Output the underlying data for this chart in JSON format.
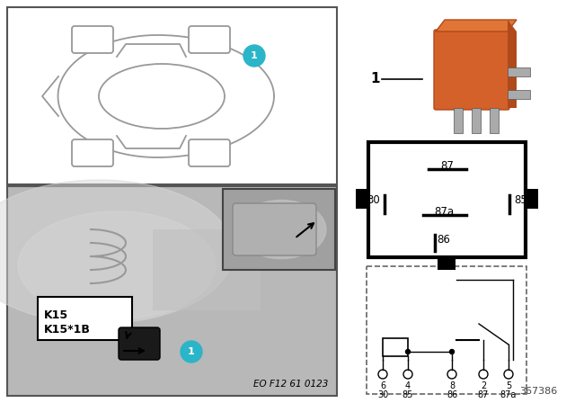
{
  "bg_color": "#ffffff",
  "cyan_circle_color": "#2bb5c8",
  "relay_color": "#d4612a",
  "relay_dark": "#b04a1a",
  "relay_top": "#e07535",
  "car_line_color": "#999999",
  "photo_bg": "#b8b8b8",
  "photo_mid": "#c8c8c8",
  "photo_light": "#d8d8d8",
  "inset_bg": "#a0a0a0",
  "inset_light": "#c0c0c0",
  "pin_labels_87": "87",
  "pin_labels_87a": "87a",
  "pin_labels_30": "30",
  "pin_labels_85": "85",
  "pin_labels_86": "86",
  "schematic_pins_top": [
    "6",
    "4",
    "8",
    "2",
    "5"
  ],
  "schematic_pins_bot": [
    "30",
    "85",
    "86",
    "87",
    "87a"
  ],
  "k15_label1": "K15",
  "k15_label2": "K15*1B",
  "doc_number": "EO F12 61 0123",
  "ref_number": "367386",
  "label1": "1"
}
